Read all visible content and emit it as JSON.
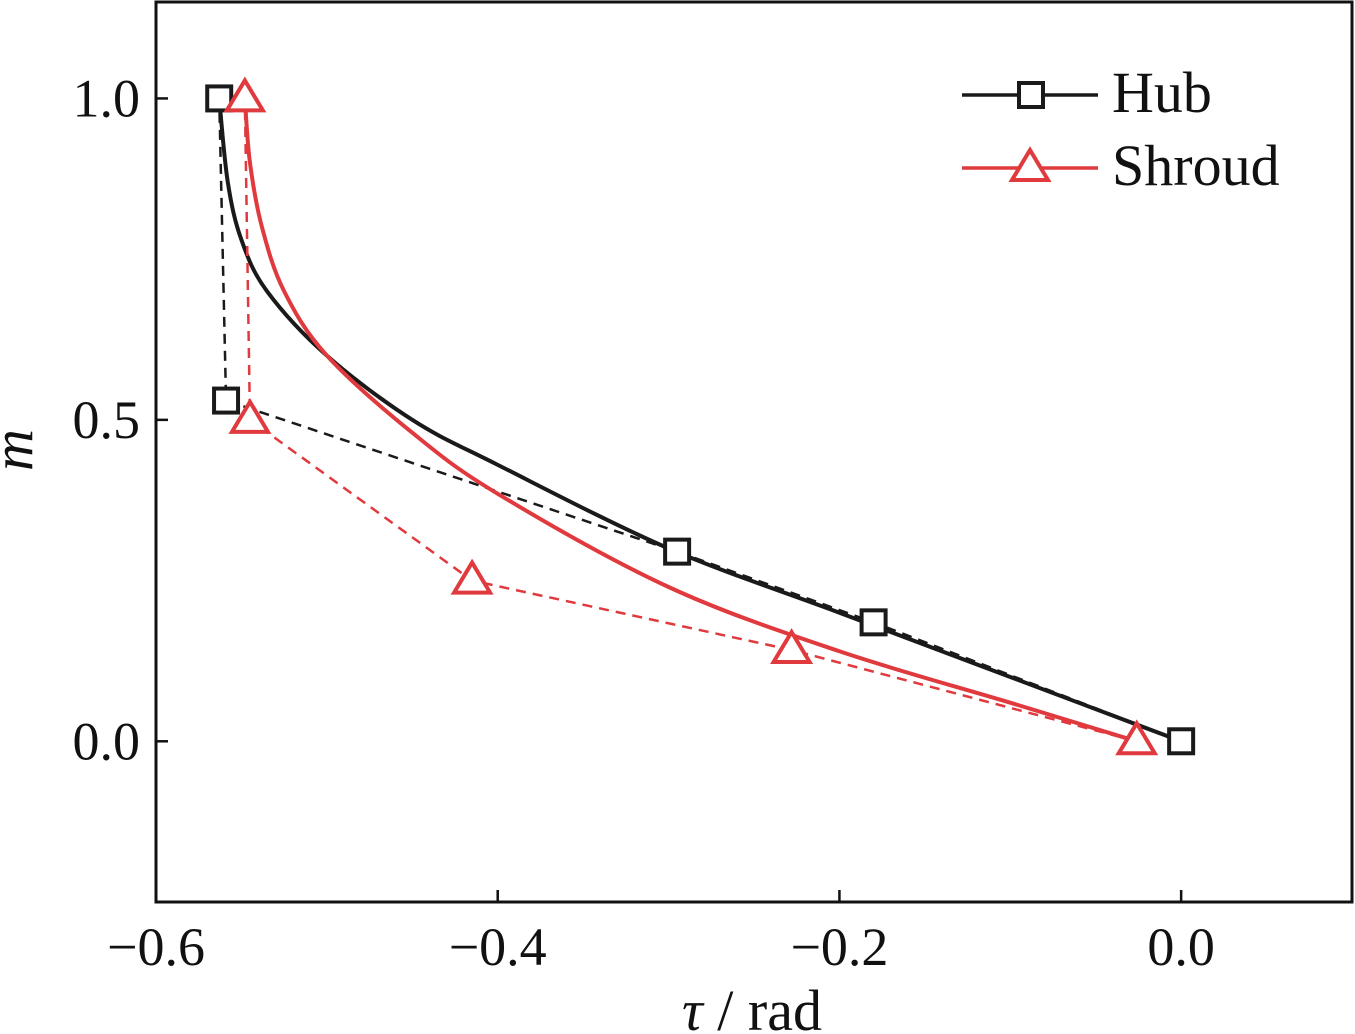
{
  "chart_data": {
    "type": "line",
    "x_axis": {
      "label_symbol": "τ",
      "label_unit": " / rad",
      "range": [
        -0.6,
        0.1
      ],
      "ticks": [
        -0.6,
        -0.4,
        -0.2,
        0.0
      ],
      "tick_labels": [
        "−0.6",
        "−0.4",
        "−0.2",
        "0.0"
      ]
    },
    "y_axis": {
      "label": "m",
      "range": [
        -0.25,
        1.15
      ],
      "ticks": [
        0.0,
        0.5,
        1.0
      ],
      "tick_labels": [
        "0.0",
        "0.5",
        "1.0"
      ]
    },
    "grid": false,
    "legend_position": "top-right",
    "series": [
      {
        "name": "Hub",
        "color": "#1a1a1a",
        "marker": "square",
        "control_points": [
          {
            "x": 0.0,
            "y": 0.0
          },
          {
            "x": -0.18,
            "y": 0.185
          },
          {
            "x": -0.295,
            "y": 0.295
          },
          {
            "x": -0.559,
            "y": 0.53
          },
          {
            "x": -0.563,
            "y": 1.0
          }
        ],
        "curve": [
          {
            "x": 0.0,
            "y": 0.0
          },
          {
            "x": -0.1,
            "y": 0.1
          },
          {
            "x": -0.2,
            "y": 0.2
          },
          {
            "x": -0.3,
            "y": 0.3
          },
          {
            "x": -0.4,
            "y": 0.43
          },
          {
            "x": -0.45,
            "y": 0.5
          },
          {
            "x": -0.5,
            "y": 0.6
          },
          {
            "x": -0.535,
            "y": 0.7
          },
          {
            "x": -0.55,
            "y": 0.78
          },
          {
            "x": -0.558,
            "y": 0.87
          },
          {
            "x": -0.563,
            "y": 1.0
          }
        ]
      },
      {
        "name": "Shroud",
        "color": "#e03a3e",
        "marker": "triangle",
        "control_points": [
          {
            "x": -0.026,
            "y": 0.0
          },
          {
            "x": -0.228,
            "y": 0.142
          },
          {
            "x": -0.415,
            "y": 0.25
          },
          {
            "x": -0.545,
            "y": 0.5
          },
          {
            "x": -0.548,
            "y": 1.0
          }
        ],
        "curve": [
          {
            "x": -0.026,
            "y": 0.0
          },
          {
            "x": -0.1,
            "y": 0.06
          },
          {
            "x": -0.2,
            "y": 0.14
          },
          {
            "x": -0.3,
            "y": 0.24
          },
          {
            "x": -0.4,
            "y": 0.385
          },
          {
            "x": -0.45,
            "y": 0.48
          },
          {
            "x": -0.5,
            "y": 0.6
          },
          {
            "x": -0.525,
            "y": 0.7
          },
          {
            "x": -0.538,
            "y": 0.8
          },
          {
            "x": -0.545,
            "y": 0.9
          },
          {
            "x": -0.548,
            "y": 1.0
          }
        ]
      }
    ]
  }
}
